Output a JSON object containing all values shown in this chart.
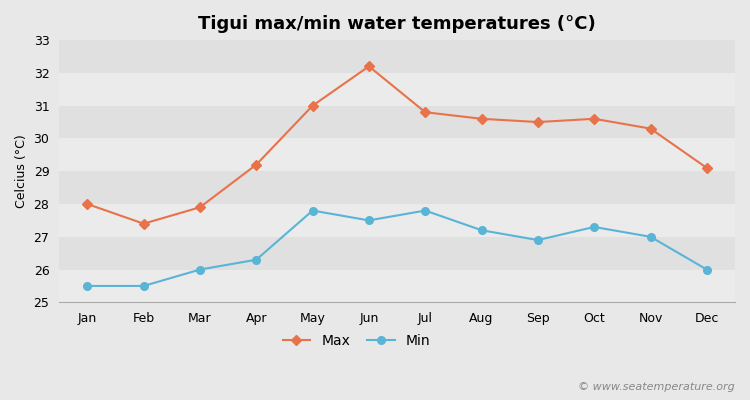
{
  "title": "Tigui max/min water temperatures (°C)",
  "ylabel": "Celcius (°C)",
  "months": [
    "Jan",
    "Feb",
    "Mar",
    "Apr",
    "May",
    "Jun",
    "Jul",
    "Aug",
    "Sep",
    "Oct",
    "Nov",
    "Dec"
  ],
  "max_values": [
    28.0,
    27.4,
    27.9,
    29.2,
    31.0,
    32.2,
    30.8,
    30.6,
    30.5,
    30.6,
    30.3,
    29.1
  ],
  "min_values": [
    25.5,
    25.5,
    26.0,
    26.3,
    27.8,
    27.5,
    27.8,
    27.2,
    26.9,
    27.3,
    27.0,
    26.0
  ],
  "max_color": "#e8724a",
  "min_color": "#5ab4d6",
  "bg_color": "#e8e8e8",
  "band_colors": [
    "#ebebeb",
    "#e0e0e0"
  ],
  "ylim": [
    25,
    33
  ],
  "yticks": [
    25,
    26,
    27,
    28,
    29,
    30,
    31,
    32,
    33
  ],
  "watermark": "© www.seatemperature.org",
  "legend_max": "Max",
  "legend_min": "Min",
  "title_fontsize": 13,
  "label_fontsize": 9,
  "tick_fontsize": 9,
  "legend_fontsize": 10,
  "watermark_fontsize": 8
}
